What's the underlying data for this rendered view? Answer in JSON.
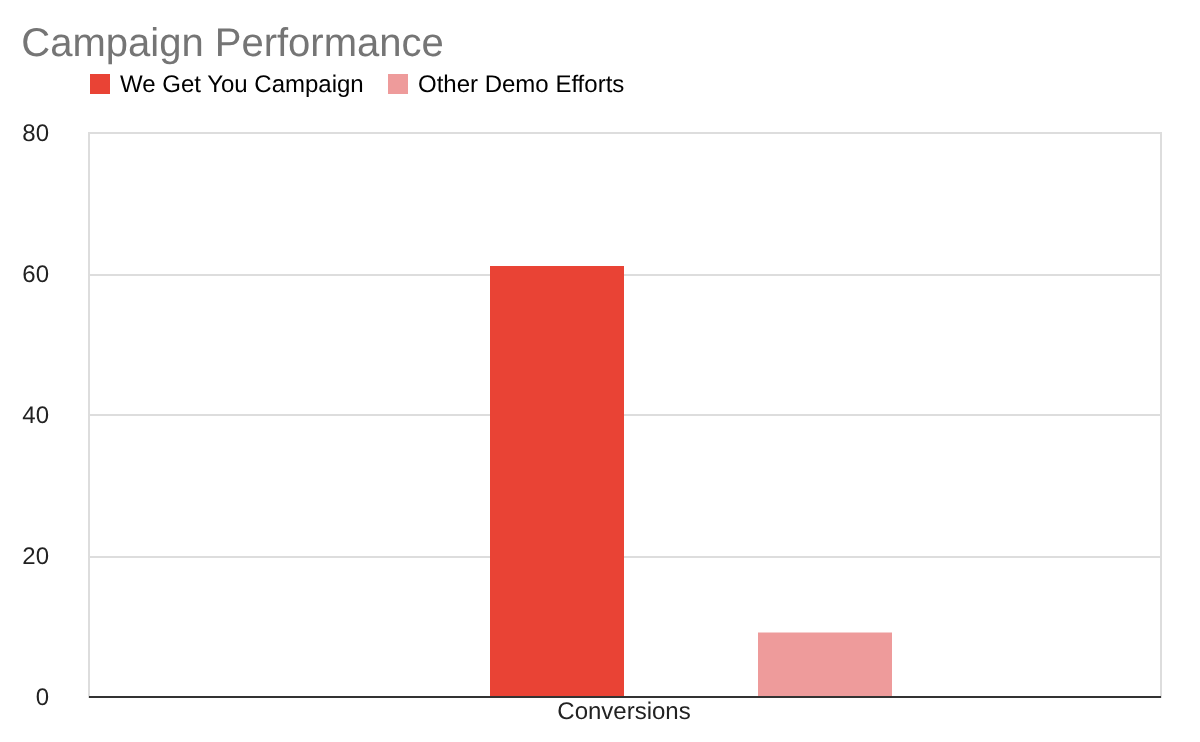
{
  "chart_data": {
    "type": "bar",
    "title": "Campaign Performance",
    "categories": [
      "Conversions"
    ],
    "series": [
      {
        "name": "We Get You Campaign",
        "color": "#e94335",
        "values": [
          61
        ]
      },
      {
        "name": "Other Demo Efforts",
        "color": "#ee9b9b",
        "values": [
          9
        ]
      }
    ],
    "ylim": [
      0,
      80
    ],
    "yticks": [
      0,
      20,
      40,
      60,
      80
    ],
    "grid": "y",
    "legend": "top"
  }
}
